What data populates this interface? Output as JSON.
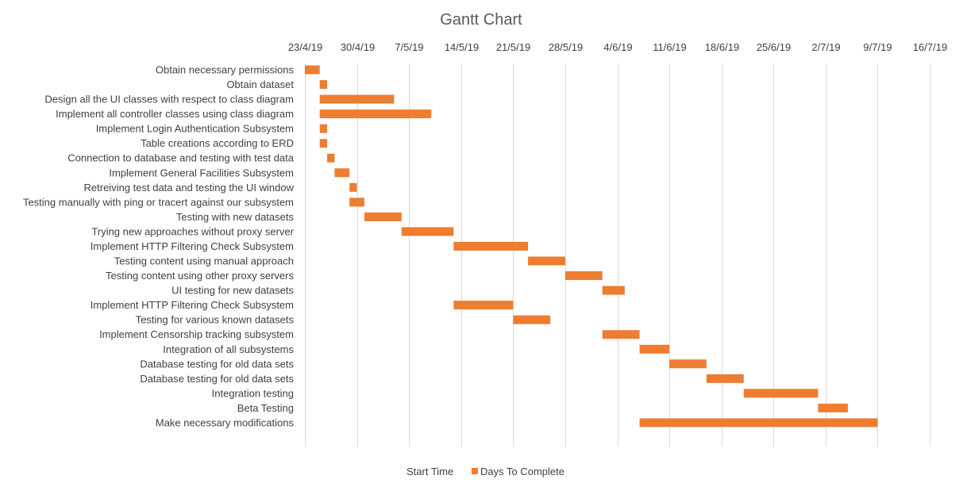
{
  "chart_data": {
    "type": "bar",
    "orientation": "horizontal",
    "stacked": true,
    "title": "Gantt Chart",
    "x_axis": {
      "position": "top",
      "start": "2019-04-23",
      "end": "2019-07-16",
      "tick_labels": [
        "23/4/19",
        "30/4/19",
        "7/5/19",
        "14/5/19",
        "21/5/19",
        "28/5/19",
        "4/6/19",
        "11/6/19",
        "18/6/19",
        "25/6/19",
        "2/7/19",
        "9/7/19",
        "16/7/19"
      ],
      "grid": true
    },
    "legend": {
      "position": "bottom",
      "entries": [
        {
          "name": "Start Time",
          "color": "none"
        },
        {
          "name": "Days To Complete",
          "color": "#ED7D31"
        }
      ]
    },
    "colors": {
      "bar": "#ED7D31",
      "grid": "#D9D9D9",
      "text": "#404040",
      "title": "#595959"
    },
    "tasks": [
      {
        "name": "Obtain necessary permissions",
        "start": "2019-04-23",
        "days": 2
      },
      {
        "name": "Obtain dataset",
        "start": "2019-04-25",
        "days": 1
      },
      {
        "name": "Design all the UI classes with respect to class diagram",
        "start": "2019-04-25",
        "days": 10
      },
      {
        "name": "Implement all controller classes using class diagram",
        "start": "2019-04-25",
        "days": 15
      },
      {
        "name": "Implement Login Authentication Subsystem",
        "start": "2019-04-25",
        "days": 1
      },
      {
        "name": "Table creations according to ERD",
        "start": "2019-04-25",
        "days": 1
      },
      {
        "name": "Connection to database and testing with test data",
        "start": "2019-04-26",
        "days": 1
      },
      {
        "name": "Implement General Facilities Subsystem",
        "start": "2019-04-27",
        "days": 2
      },
      {
        "name": "Retreiving test data and testing the UI window",
        "start": "2019-04-29",
        "days": 1
      },
      {
        "name": "Testing manually with ping or tracert against our subsystem",
        "start": "2019-04-29",
        "days": 2
      },
      {
        "name": "Testing with new datasets",
        "start": "2019-05-01",
        "days": 5
      },
      {
        "name": "Trying new approaches without proxy server",
        "start": "2019-05-06",
        "days": 7
      },
      {
        "name": "Implement HTTP Filtering Check Subsystem",
        "start": "2019-05-13",
        "days": 10
      },
      {
        "name": "Testing content using manual approach",
        "start": "2019-05-23",
        "days": 5
      },
      {
        "name": "Testing content using other proxy servers",
        "start": "2019-05-28",
        "days": 5
      },
      {
        "name": "UI testing for new datasets",
        "start": "2019-06-02",
        "days": 3
      },
      {
        "name": "Implement HTTP Filtering Check Subsystem",
        "start": "2019-05-13",
        "days": 8
      },
      {
        "name": "Testing for various known datasets",
        "start": "2019-05-21",
        "days": 5
      },
      {
        "name": "Implement Censorship tracking subsystem",
        "start": "2019-06-02",
        "days": 5
      },
      {
        "name": "Integration of all subsystems",
        "start": "2019-06-07",
        "days": 4
      },
      {
        "name": "Database testing for old data sets",
        "start": "2019-06-11",
        "days": 5
      },
      {
        "name": "Database testing for old data sets",
        "start": "2019-06-16",
        "days": 5
      },
      {
        "name": "Integration testing",
        "start": "2019-06-21",
        "days": 10
      },
      {
        "name": "Beta Testing",
        "start": "2019-07-01",
        "days": 4
      },
      {
        "name": "Make necessary modifications",
        "start": "2019-06-07",
        "days": 32
      }
    ]
  }
}
